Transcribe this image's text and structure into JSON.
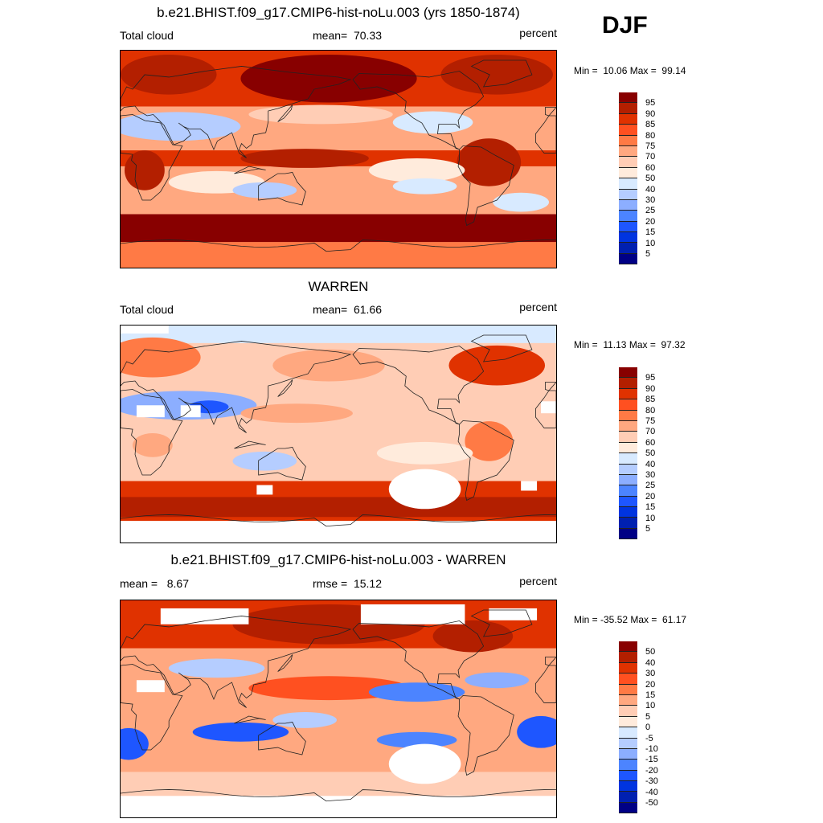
{
  "season": "DJF",
  "units": "percent",
  "palette": [
    "#880000",
    "#b31f00",
    "#e03200",
    "#ff5020",
    "#ff7a45",
    "#ffa880",
    "#ffcdb5",
    "#ffebdc",
    "#d8eaff",
    "#b5cdff",
    "#8caeff",
    "#4c84ff",
    "#1e56ff",
    "#0034e0",
    "#0020b0",
    "#000085"
  ],
  "panels": [
    {
      "title": "b.e21.BHIST.f09_g17.CMIP6-hist-noLu.003 (yrs 1850-1874)",
      "left_label": "Total cloud",
      "center_label": "mean=  70.33",
      "units": "percent",
      "minmax": "Min =  10.06 Max =  99.14",
      "levels": [
        "95",
        "90",
        "85",
        "80",
        "75",
        "70",
        "60",
        "50",
        "40",
        "30",
        "25",
        "20",
        "15",
        "10",
        "5"
      ]
    },
    {
      "title": "WARREN",
      "left_label": "Total cloud",
      "center_label": "mean=  61.66",
      "units": "percent",
      "minmax": "Min =  11.13 Max =  97.32",
      "levels": [
        "95",
        "90",
        "85",
        "80",
        "75",
        "70",
        "60",
        "50",
        "40",
        "30",
        "25",
        "20",
        "15",
        "10",
        "5"
      ]
    },
    {
      "title": "b.e21.BHIST.f09_g17.CMIP6-hist-noLu.003 - WARREN",
      "left_label": "mean =   8.67",
      "center_label": "rmse =  15.12",
      "units": "percent",
      "minmax": "Min = -35.52 Max =  61.17",
      "levels": [
        "50",
        "40",
        "30",
        "20",
        "15",
        "10",
        "5",
        "0",
        "-5",
        "-10",
        "-15",
        "-20",
        "-30",
        "-40",
        "-50"
      ]
    }
  ]
}
